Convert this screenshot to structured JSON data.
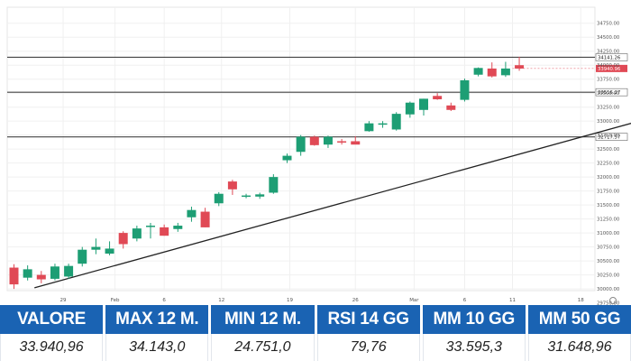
{
  "chart_data": {
    "type": "candlestick",
    "colors": {
      "up": "#1d9e74",
      "down": "#e04955",
      "trendline": "#222222",
      "level": "#444444"
    },
    "ylim": [
      29625,
      34875
    ],
    "y_ticks": [
      "34750.00",
      "34500.00",
      "34250.00",
      "34000.00",
      "33750.00",
      "33500.00",
      "33250.00",
      "33000.00",
      "32750.00",
      "32500.00",
      "32250.00",
      "32000.00",
      "31750.00",
      "31500.00",
      "31250.00",
      "31000.00",
      "30750.00",
      "30500.00",
      "30250.00",
      "30000.00",
      "29750.00"
    ],
    "x_tick_labels": [
      "29",
      "Feb",
      "6",
      "12",
      "19",
      "26",
      "Mar",
      "6",
      "11",
      "18"
    ],
    "x_tick_index": [
      3.6,
      7.4,
      11,
      15.2,
      20.2,
      25,
      29.3,
      33,
      36.5,
      41.5
    ],
    "candles": [
      {
        "o": 30380,
        "h": 30440,
        "l": 30000,
        "c": 30080
      },
      {
        "o": 30200,
        "h": 30420,
        "l": 30150,
        "c": 30350
      },
      {
        "o": 30250,
        "h": 30320,
        "l": 30100,
        "c": 30170
      },
      {
        "o": 30180,
        "h": 30450,
        "l": 30150,
        "c": 30400
      },
      {
        "o": 30220,
        "h": 30450,
        "l": 30180,
        "c": 30410
      },
      {
        "o": 30450,
        "h": 30750,
        "l": 30400,
        "c": 30700
      },
      {
        "o": 30700,
        "h": 30900,
        "l": 30620,
        "c": 30750
      },
      {
        "o": 30630,
        "h": 30850,
        "l": 30600,
        "c": 30720
      },
      {
        "o": 31000,
        "h": 31030,
        "l": 30720,
        "c": 30800
      },
      {
        "o": 30900,
        "h": 31130,
        "l": 30850,
        "c": 31080
      },
      {
        "o": 31120,
        "h": 31180,
        "l": 30900,
        "c": 31130
      },
      {
        "o": 31100,
        "h": 31150,
        "l": 30950,
        "c": 30950
      },
      {
        "o": 31070,
        "h": 31180,
        "l": 31020,
        "c": 31130
      },
      {
        "o": 31280,
        "h": 31470,
        "l": 31200,
        "c": 31410
      },
      {
        "o": 31380,
        "h": 31450,
        "l": 31100,
        "c": 31100
      },
      {
        "o": 31530,
        "h": 31730,
        "l": 31480,
        "c": 31700
      },
      {
        "o": 31920,
        "h": 31950,
        "l": 31680,
        "c": 31780
      },
      {
        "o": 31650,
        "h": 31700,
        "l": 31620,
        "c": 31670
      },
      {
        "o": 31650,
        "h": 31720,
        "l": 31610,
        "c": 31690
      },
      {
        "o": 31720,
        "h": 32050,
        "l": 31700,
        "c": 32000
      },
      {
        "o": 32300,
        "h": 32420,
        "l": 32250,
        "c": 32380
      },
      {
        "o": 32450,
        "h": 32750,
        "l": 32380,
        "c": 32720
      },
      {
        "o": 32720,
        "h": 32740,
        "l": 32560,
        "c": 32570
      },
      {
        "o": 32580,
        "h": 32740,
        "l": 32520,
        "c": 32720
      },
      {
        "o": 32640,
        "h": 32680,
        "l": 32580,
        "c": 32620
      },
      {
        "o": 32640,
        "h": 32730,
        "l": 32600,
        "c": 32580
      },
      {
        "o": 32820,
        "h": 33000,
        "l": 32810,
        "c": 32960
      },
      {
        "o": 32950,
        "h": 33000,
        "l": 32880,
        "c": 32960
      },
      {
        "o": 32850,
        "h": 33160,
        "l": 32830,
        "c": 33130
      },
      {
        "o": 33120,
        "h": 33350,
        "l": 33060,
        "c": 33330
      },
      {
        "o": 33200,
        "h": 33400,
        "l": 33100,
        "c": 33400
      },
      {
        "o": 33450,
        "h": 33500,
        "l": 33380,
        "c": 33390
      },
      {
        "o": 33280,
        "h": 33330,
        "l": 33180,
        "c": 33200
      },
      {
        "o": 33380,
        "h": 33760,
        "l": 33350,
        "c": 33730
      },
      {
        "o": 33830,
        "h": 33960,
        "l": 33800,
        "c": 33950
      },
      {
        "o": 33940,
        "h": 34050,
        "l": 33780,
        "c": 33800
      },
      {
        "o": 33820,
        "h": 34060,
        "l": 33790,
        "c": 33940
      },
      {
        "o": 34000,
        "h": 34150,
        "l": 33900,
        "c": 33940
      }
    ],
    "trendline": {
      "from": [
        1.5,
        30020
      ],
      "to": [
        49.5,
        33250
      ]
    },
    "levels": [
      {
        "value": 34141.26,
        "label": "34141.26"
      },
      {
        "value": 33940.96,
        "label": "33940.96",
        "style": "current"
      },
      {
        "value": 33516.27,
        "label": "33516.27"
      },
      {
        "value": 32717.57,
        "label": "32717.57"
      }
    ]
  },
  "stats": [
    {
      "label": "VALORE",
      "value": "33.940,96"
    },
    {
      "label": "MAX 12 M.",
      "value": "34.143,0"
    },
    {
      "label": "MIN 12 M.",
      "value": "24.751,0"
    },
    {
      "label": "RSI 14 GG",
      "value": "79,76"
    },
    {
      "label": "MM 10 GG",
      "value": "33.595,3"
    },
    {
      "label": "MM 50 GG",
      "value": "31.648,96"
    }
  ]
}
